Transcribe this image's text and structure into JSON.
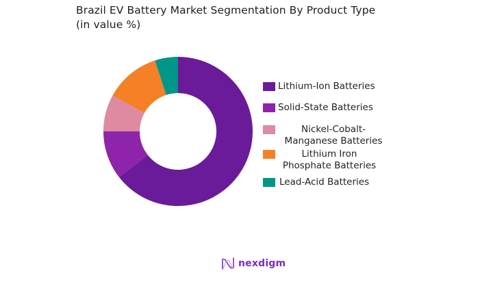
{
  "chart_data": {
    "type": "pie",
    "subtype": "donut",
    "title": "Brazil EV Battery Market Segmentation By Product Type",
    "subtitle": "(in value %)",
    "categories": [
      "Lithium-Ion Batteries",
      "Solid-State Batteries",
      "Nickel-Cobalt-Manganese Batteries",
      "Lithium Iron Phosphate Batteries",
      "Lead-Acid Batteries"
    ],
    "values": [
      64.5,
      10.5,
      8,
      12,
      5
    ],
    "colors": [
      "#6a1b9a",
      "#8e24aa",
      "#de8aa0",
      "#f58025",
      "#009688"
    ],
    "legend_position": "right",
    "start_angle": "12 o'clock",
    "direction": "clockwise"
  },
  "header": {
    "title_line1": "Brazil EV Battery Market Segmentation By Product Type",
    "title_line2": "(in value %)"
  },
  "legend": {
    "items": [
      {
        "label": "Lithium-Ion Batteries",
        "color": "#6a1b9a"
      },
      {
        "label": "Solid-State Batteries",
        "color": "#8e24aa"
      },
      {
        "label": "Nickel-Cobalt-Manganese Batteries",
        "color": "#de8aa0"
      },
      {
        "label": "Lithium Iron Phosphate Batteries",
        "color": "#f58025"
      },
      {
        "label": "Lead-Acid Batteries",
        "color": "#009688"
      }
    ]
  },
  "branding": {
    "logo_text": "nexdigm",
    "logo_icon": "nexdigm-wave-icon"
  }
}
